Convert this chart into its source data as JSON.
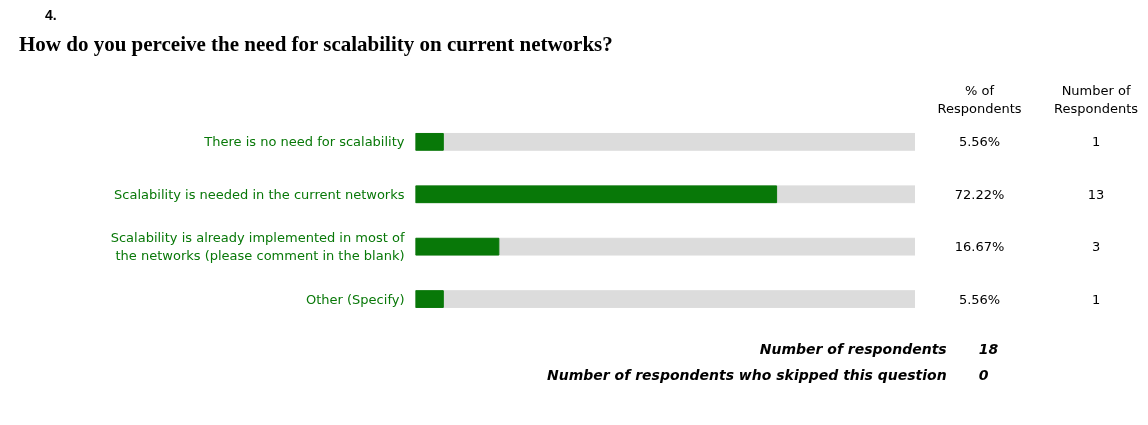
{
  "chart_data": {
    "type": "bar",
    "orientation": "horizontal",
    "title": "How do you perceive the need for scalability on current networks?",
    "categories": [
      "There is no need for scalability",
      "Scalability is needed in the current networks",
      "Scalability is already implemented in most of the networks (please comment in the blank)",
      "Other (Specify)"
    ],
    "values": [
      5.56,
      72.22,
      16.67,
      5.56
    ],
    "value_labels": [
      "5.56%",
      "72.22%",
      "16.67%",
      "5.56%"
    ],
    "color": "#087808",
    "xlim": [
      0,
      100
    ],
    "tick_labels": "y",
    "grid": false,
    "annotations": [
      "4.",
      "% of Respondents",
      "Number of Respondents",
      "1",
      "13",
      "3",
      "1",
      "Number of respondents",
      "18",
      "Number of respondents who skipped this question",
      "0"
    ]
  }
}
